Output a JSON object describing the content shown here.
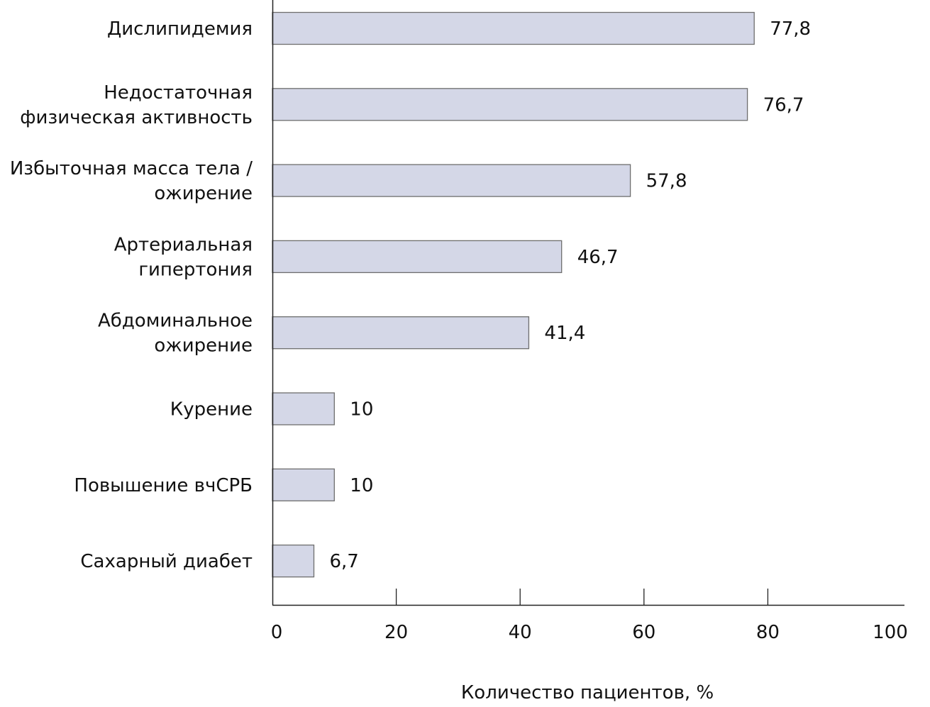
{
  "chart_data": {
    "type": "bar",
    "orientation": "horizontal",
    "title": "",
    "xlabel": "Количество пациентов, %",
    "ylabel": "",
    "xlim": [
      0,
      100
    ],
    "xticks": [
      0,
      20,
      40,
      60,
      80,
      100
    ],
    "grid": false,
    "bar_color": "#d4d7e7",
    "bar_edge_color": "#6e6e6e",
    "categories": [
      [
        "Дислипидемия"
      ],
      [
        "Недостаточная",
        "физическая активность"
      ],
      [
        "Избыточная масса тела /",
        "ожирение"
      ],
      [
        "Артериальная",
        "гипертония"
      ],
      [
        "Абдоминальное",
        "ожирение"
      ],
      [
        "Курение"
      ],
      [
        "Повышение вчСРБ"
      ],
      [
        "Сахарный диабет"
      ]
    ],
    "values": [
      77.8,
      76.7,
      57.8,
      46.7,
      41.4,
      10,
      10,
      6.7
    ],
    "value_labels": [
      "77,8",
      "76,7",
      "57,8",
      "46,7",
      "41,4",
      "10",
      "10",
      "6,7"
    ]
  }
}
